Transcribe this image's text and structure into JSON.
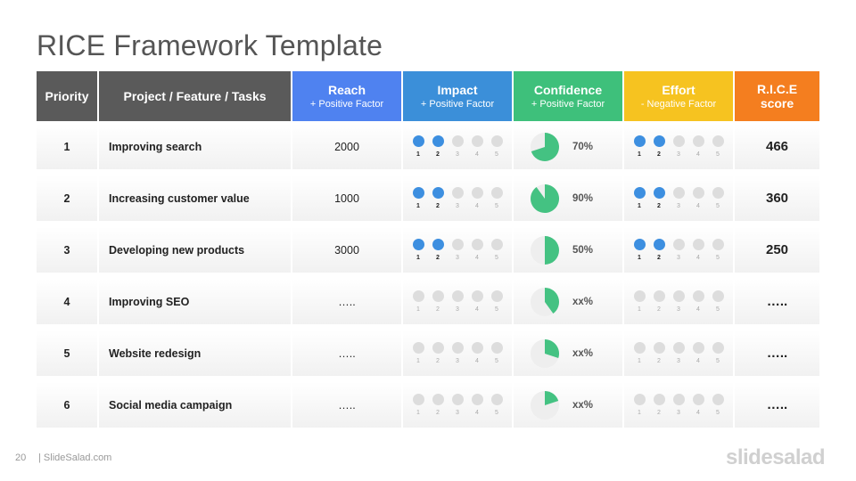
{
  "title": "RICE Framework Template",
  "colors": {
    "priority_header": "#5a5a5a",
    "project_header": "#5a5a5a",
    "reach_header": "#4f82f0",
    "impact_header": "#3b8fd9",
    "confidence_header": "#3ec07b",
    "effort_header": "#f6c320",
    "score_header": "#f47e1f",
    "dot_on": "#3d8fe0",
    "dot_off": "#dddddd",
    "pie_fill": "#44c282",
    "pie_bg": "#eeeeee"
  },
  "headers": {
    "priority": "Priority",
    "project": "Project / Feature / Tasks",
    "reach": "Reach",
    "reach_sub": "+ Positive Factor",
    "impact": "Impact",
    "impact_sub": "+ Positive Factor",
    "confidence": "Confidence",
    "confidence_sub": "+ Positive Factor",
    "effort": "Effort",
    "effort_sub": "- Negative Factor",
    "score": "R.I.C.E",
    "score_sub": "score"
  },
  "scale_labels": [
    "1",
    "2",
    "3",
    "4",
    "5"
  ],
  "rows": [
    {
      "priority": "1",
      "project": "Improving search",
      "reach": "2000",
      "impact": 2,
      "confidence_value": 0.7,
      "confidence": "70%",
      "effort": 2,
      "score": "466"
    },
    {
      "priority": "2",
      "project": "Increasing customer value",
      "reach": "1000",
      "impact": 2,
      "confidence_value": 0.9,
      "confidence": "90%",
      "effort": 2,
      "score": "360"
    },
    {
      "priority": "3",
      "project": "Developing new products",
      "reach": "3000",
      "impact": 2,
      "confidence_value": 0.5,
      "confidence": "50%",
      "effort": 2,
      "score": "250"
    },
    {
      "priority": "4",
      "project": "Improving SEO",
      "reach": "…..",
      "impact": 0,
      "confidence_value": 0.4,
      "confidence": "xx%",
      "effort": 0,
      "score": "….."
    },
    {
      "priority": "5",
      "project": "Website redesign",
      "reach": "…..",
      "impact": 0,
      "confidence_value": 0.3,
      "confidence": "xx%",
      "effort": 0,
      "score": "….."
    },
    {
      "priority": "6",
      "project": "Social media campaign",
      "reach": "…..",
      "impact": 0,
      "confidence_value": 0.2,
      "confidence": "xx%",
      "effort": 0,
      "score": "….."
    }
  ],
  "footer": {
    "page_number": "20",
    "site": "| SlideSalad.com",
    "brand": "slidesalad"
  }
}
